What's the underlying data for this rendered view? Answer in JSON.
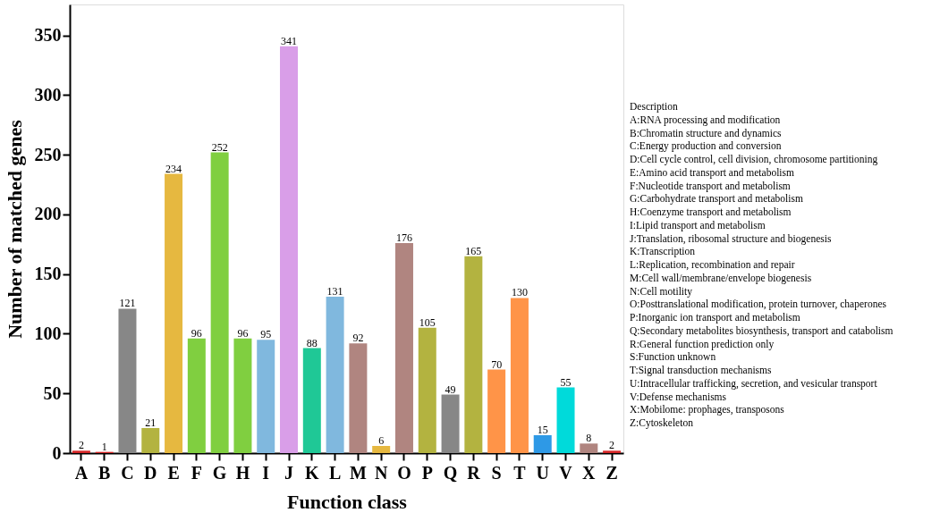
{
  "chart_data": {
    "type": "bar",
    "xlabel": "Function class",
    "ylabel": "Number of matched genes",
    "categories": [
      "A",
      "B",
      "C",
      "D",
      "E",
      "F",
      "G",
      "H",
      "I",
      "J",
      "K",
      "L",
      "M",
      "N",
      "O",
      "P",
      "Q",
      "R",
      "S",
      "T",
      "U",
      "V",
      "X",
      "Z"
    ],
    "values": [
      2,
      1,
      121,
      21,
      234,
      96,
      252,
      96,
      95,
      341,
      88,
      131,
      92,
      6,
      176,
      105,
      49,
      165,
      70,
      130,
      15,
      55,
      8,
      2
    ],
    "colors": [
      "#d62728",
      "#d62728",
      "#878787",
      "#b3b340",
      "#e6b840",
      "#80cf40",
      "#80cf40",
      "#80cf40",
      "#80b8de",
      "#d99ee8",
      "#1fc896",
      "#80b8de",
      "#b08580",
      "#e6b840",
      "#b08580",
      "#b3b340",
      "#878787",
      "#b3b340",
      "#ff9448",
      "#ff9448",
      "#2e99e6",
      "#00dada",
      "#b08580",
      "#d62728"
    ],
    "ylim": [
      0,
      376
    ],
    "yticks": [
      0,
      50,
      100,
      150,
      200,
      250,
      300,
      350
    ],
    "data_labels": true,
    "grid": false,
    "legend": false,
    "annotations": [
      "Description",
      "A:RNA processing and modification",
      "B:Chromatin structure and dynamics",
      "C:Energy production and conversion",
      "D:Cell cycle control, cell division, chromosome partitioning",
      "E:Amino acid transport and metabolism",
      "F:Nucleotide transport and metabolism",
      "G:Carbohydrate transport and metabolism",
      "H:Coenzyme transport and metabolism",
      "I:Lipid transport and metabolism",
      "J:Translation, ribosomal structure and biogenesis",
      "K:Transcription",
      "L:Replication, recombination and repair",
      "M:Cell wall/membrane/envelope biogenesis",
      "N:Cell motility",
      "O:Posttranslational modification, protein turnover, chaperones",
      "P:Inorganic ion transport and metabolism",
      "Q:Secondary metabolites biosynthesis, transport and catabolism",
      "R:General function prediction only",
      "S:Function unknown",
      "T:Signal transduction mechanisms",
      "U:Intracellular trafficking, secretion, and vesicular transport",
      "V:Defense mechanisms",
      "X:Mobilome: prophages, transposons",
      "Z:Cytoskeleton"
    ]
  }
}
